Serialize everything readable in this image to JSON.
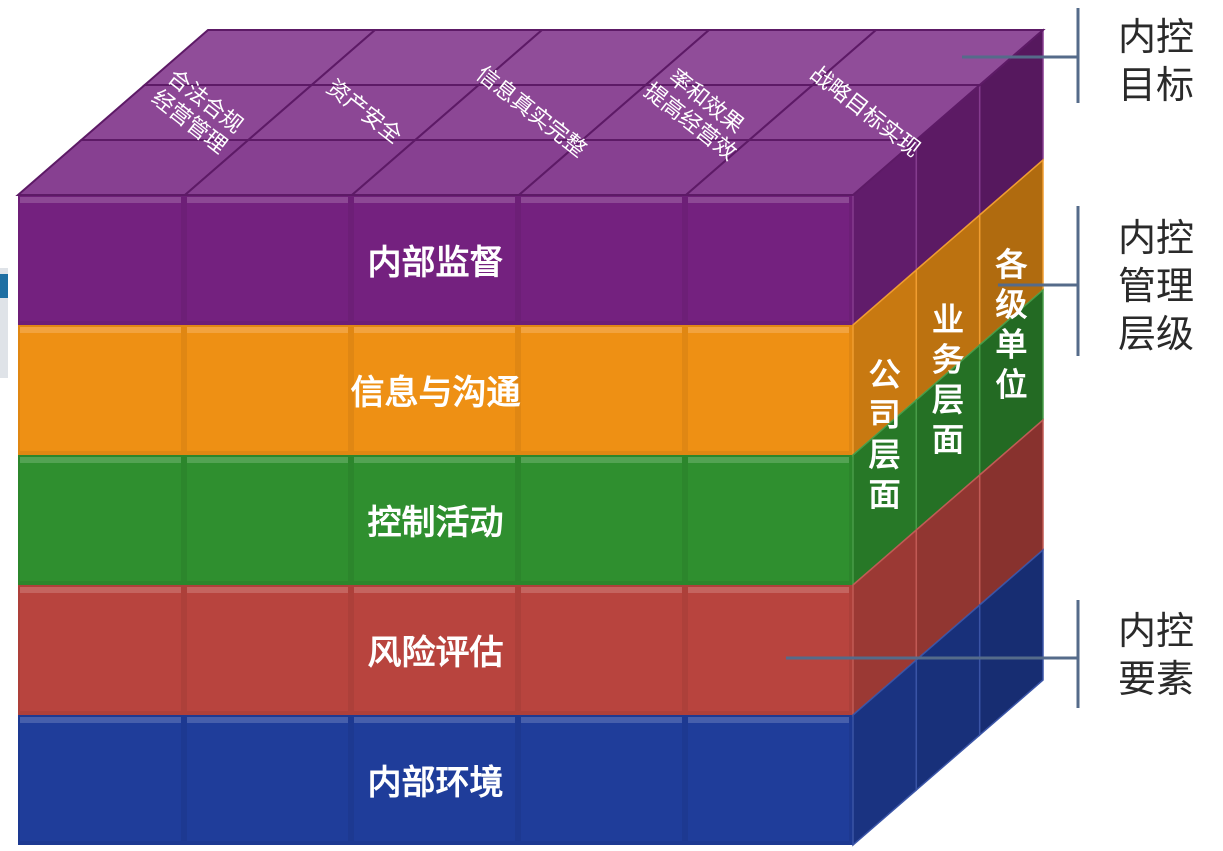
{
  "layers": [
    {
      "label": "内部监督",
      "color": "#74217f"
    },
    {
      "label": "信息与沟通",
      "color": "#ee9014"
    },
    {
      "label": "控制活动",
      "color": "#2f8f2f"
    },
    {
      "label": "风险评估",
      "color": "#b8443e"
    },
    {
      "label": "内部环境",
      "color": "#1f3d9a"
    }
  ],
  "objectives": [
    "经营管理合法合规",
    "资产安全",
    "信息真实完整",
    "提高经营效率和效果",
    "战略目标实现"
  ],
  "management_levels": [
    "公司层面",
    "业务层面",
    "各级单位"
  ],
  "legend": {
    "objectives": [
      "内控",
      "目标"
    ],
    "management": [
      "内控",
      "管理",
      "层级"
    ],
    "elements": [
      "内控",
      "要素"
    ]
  }
}
